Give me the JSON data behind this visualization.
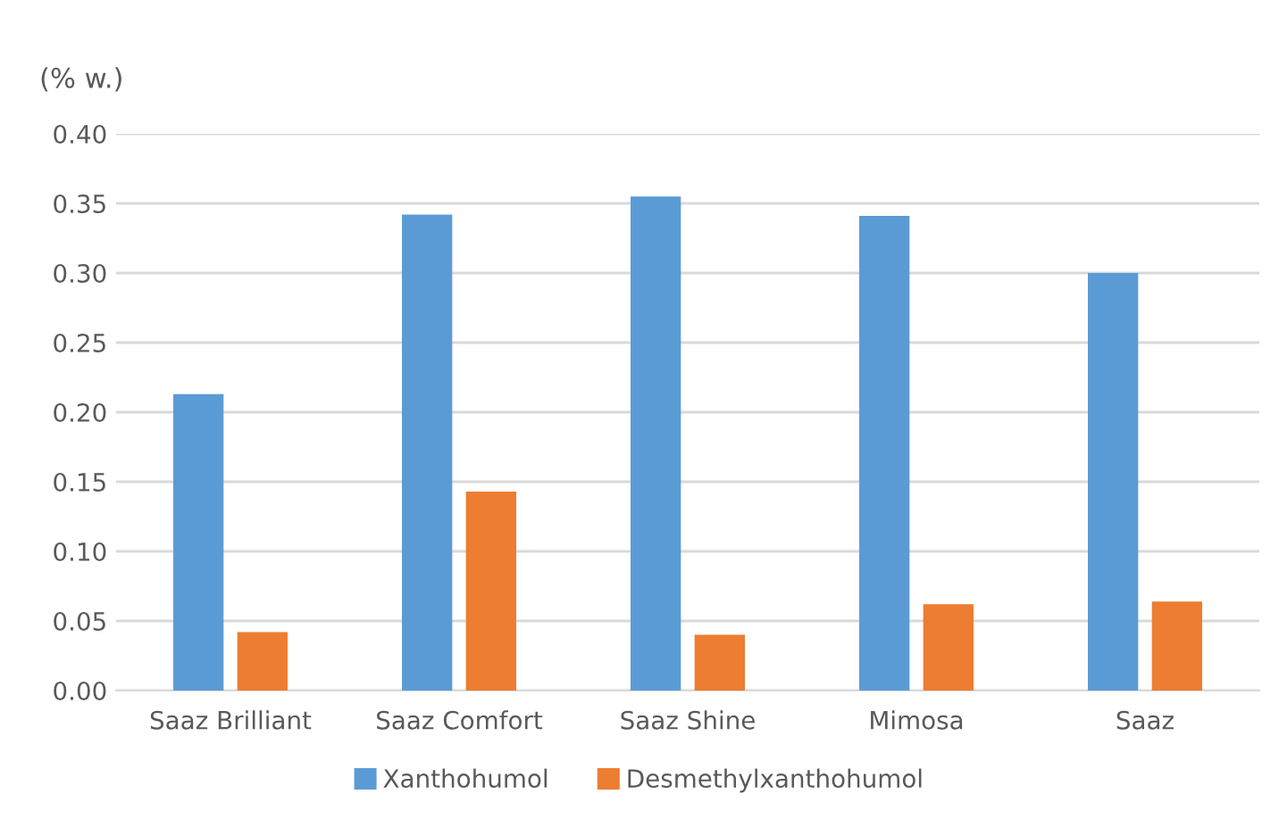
{
  "chart_data": {
    "type": "bar",
    "ylabel": "(% w.)",
    "categories": [
      "Saaz Brilliant",
      "Saaz Comfort",
      "Saaz Shine",
      "Mimosa",
      "Saaz"
    ],
    "series": [
      {
        "name": "Xanthohumol",
        "color": "#5b9bd5",
        "values": [
          0.213,
          0.342,
          0.355,
          0.341,
          0.3
        ]
      },
      {
        "name": "Desmethylxanthohumol",
        "color": "#ed7d31",
        "values": [
          0.042,
          0.143,
          0.04,
          0.062,
          0.064
        ]
      }
    ],
    "ylim": [
      0,
      0.4
    ],
    "yticks": [
      {
        "value": 0,
        "label": "0.00"
      },
      {
        "value": 0.05,
        "label": "0.05"
      },
      {
        "value": 0.1,
        "label": "0.10"
      },
      {
        "value": 0.15,
        "label": "0.15"
      },
      {
        "value": 0.2,
        "label": "0.20"
      },
      {
        "value": 0.25,
        "label": "0.25"
      },
      {
        "value": 0.3,
        "label": "0.30"
      },
      {
        "value": 0.35,
        "label": "0.35"
      },
      {
        "value": 0.4,
        "label": "0.40"
      }
    ],
    "grid": "y",
    "legend": "bottom"
  }
}
